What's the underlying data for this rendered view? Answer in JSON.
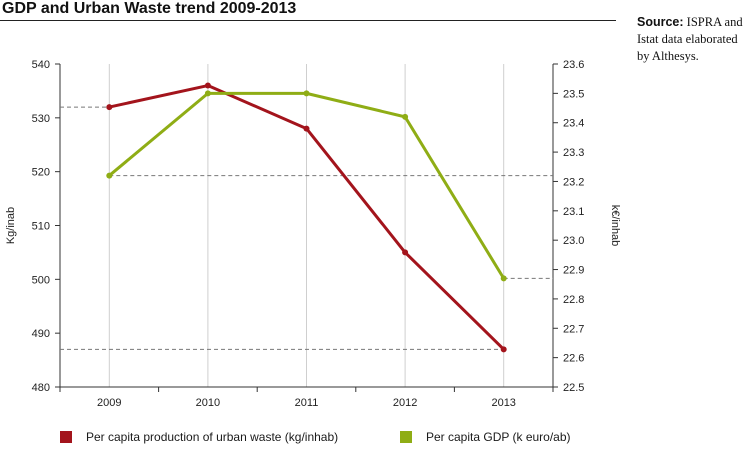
{
  "title": "GDP and Urban Waste trend 2009-2013",
  "source": {
    "label": "Source:",
    "text": "ISPRA and Istat data elaborated by Althesys."
  },
  "chart_data": {
    "type": "line",
    "categories": [
      "2009",
      "2010",
      "2011",
      "2012",
      "2013"
    ],
    "series": [
      {
        "name": "Per capita production of urban waste (kg/inhab)",
        "axis": "left",
        "color": "#a3141c",
        "values": [
          532,
          536,
          528,
          505,
          487
        ]
      },
      {
        "name": "Per capita GDP (k euro/ab)",
        "axis": "right",
        "color": "#8fad15",
        "values": [
          23.22,
          23.5,
          23.5,
          23.42,
          22.87
        ]
      }
    ],
    "ylabel": "Kg/inab",
    "ylim": [
      480,
      540
    ],
    "yticks": [
      "480",
      "490",
      "500",
      "510",
      "520",
      "530",
      "540"
    ],
    "y2label": "k€/inhab",
    "y2lim": [
      22.5,
      23.6
    ],
    "y2ticks": [
      "22.5",
      "22.6",
      "22.7",
      "22.8",
      "22.9",
      "23.0",
      "23.1",
      "23.2",
      "23.3",
      "23.4",
      "23.5",
      "23.6"
    ],
    "grid": "vertical",
    "legend_position": "bottom"
  }
}
